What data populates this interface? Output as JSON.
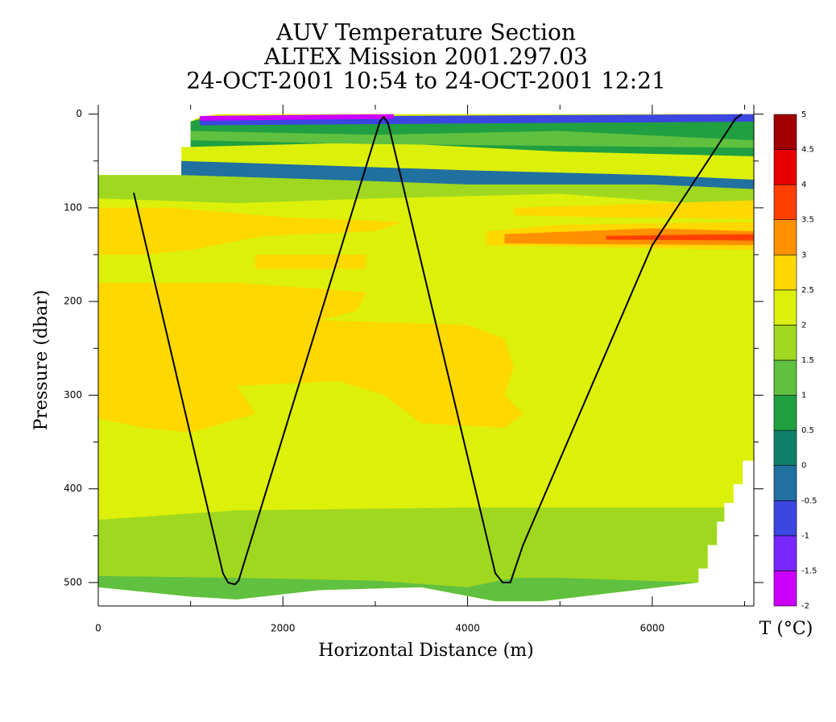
{
  "chart_data": {
    "type": "contour",
    "title": "AUV Temperature Section",
    "subtitle": "ALTEX Mission 2001.297.03",
    "time_range": "24-OCT-2001 10:54 to 24-OCT-2001 12:21",
    "x_label": "Horizontal Distance (m)",
    "y_label": "Pressure (dbar)",
    "colorbar_label": "T (°C)",
    "xlim": [
      0,
      7100
    ],
    "ylim": [
      525,
      -10
    ],
    "xticks": [
      0,
      2000,
      4000,
      6000
    ],
    "xminorticks": [
      1000,
      3000,
      5000,
      7000
    ],
    "yticks": [
      0,
      100,
      200,
      300,
      400,
      500
    ],
    "yminorticks": [
      50,
      150,
      250,
      350,
      450
    ],
    "levels": [
      -2,
      -1.5,
      -1,
      -0.5,
      0,
      0.5,
      1,
      1.5,
      2,
      2.5,
      3,
      3.5,
      4,
      4.5,
      5
    ],
    "level_colors": [
      "#cc00ff",
      "#7828ff",
      "#3c46e0",
      "#2070a0",
      "#10806a",
      "#20a040",
      "#60c040",
      "#a0d820",
      "#dcf00a",
      "#ffd800",
      "#ff9000",
      "#ff4000",
      "#e80000",
      "#a00000"
    ],
    "regions": [
      {
        "level": 2,
        "x": [
          0,
          900,
          900,
          1000,
          1000,
          1100,
          1300,
          7100,
          7100,
          6980,
          6980,
          6880,
          6880,
          6780,
          6780,
          6700,
          6700,
          6600,
          6600,
          6500,
          6500,
          4800,
          4300,
          3500,
          2400,
          1800,
          1500,
          1000,
          0
        ],
        "y": [
          65,
          65,
          35,
          35,
          8,
          3,
          0,
          0,
          370,
          370,
          395,
          395,
          415,
          415,
          435,
          435,
          460,
          460,
          485,
          485,
          500,
          520,
          520,
          505,
          508,
          510,
          518,
          515,
          505
        ]
      },
      {
        "level": 1.5,
        "x": [
          0,
          1500,
          4000,
          6780,
          6780,
          6700,
          6700,
          6600,
          6600,
          6500,
          6500,
          4800,
          4300,
          3500,
          2400,
          1500,
          1000,
          0
        ],
        "y": [
          433,
          423,
          420,
          420,
          435,
          435,
          460,
          460,
          485,
          485,
          500,
          520,
          520,
          505,
          508,
          518,
          515,
          505
        ]
      },
      {
        "level": 1,
        "x": [
          0,
          1500,
          3000,
          4000,
          4500,
          5000,
          6500,
          4800,
          4300,
          3500,
          2400,
          1500,
          1000,
          0
        ],
        "y": [
          493,
          495,
          498,
          505,
          495,
          495,
          500,
          520,
          520,
          505,
          508,
          518,
          515,
          505
        ]
      },
      {
        "level": 1.5,
        "x": [
          0,
          900,
          900,
          3000,
          5000,
          7100,
          7100,
          5000,
          3000,
          1500,
          0
        ],
        "y": [
          65,
          65,
          50,
          70,
          75,
          70,
          100,
          85,
          90,
          95,
          90
        ]
      },
      {
        "level": 2.5,
        "x": [
          0,
          800,
          2000,
          3300,
          3000,
          1800,
          1000,
          500,
          0
        ],
        "y": [
          100,
          100,
          110,
          115,
          125,
          130,
          145,
          150,
          150
        ]
      },
      {
        "level": 2.5,
        "x": [
          1700,
          2900,
          2900,
          1700
        ],
        "y": [
          150,
          150,
          165,
          165
        ]
      },
      {
        "level": 2.5,
        "x": [
          0,
          1500,
          2900,
          2800,
          2400,
          4000,
          4400,
          4500,
          4400,
          4600,
          4400,
          3500,
          3100,
          2600,
          1500,
          1700,
          1000,
          500,
          0
        ],
        "y": [
          180,
          180,
          190,
          210,
          220,
          225,
          240,
          270,
          300,
          320,
          335,
          330,
          300,
          285,
          290,
          320,
          340,
          335,
          325
        ]
      },
      {
        "level": 2.5,
        "x": [
          4500,
          7100,
          7100,
          5500,
          4500
        ],
        "y": [
          100,
          92,
          112,
          110,
          108
        ]
      },
      {
        "level": 2.5,
        "x": [
          4200,
          5000,
          7100,
          7100,
          4200
        ],
        "y": [
          125,
          118,
          115,
          145,
          140
        ]
      },
      {
        "level": 3,
        "x": [
          4400,
          6000,
          7100,
          7100,
          4400
        ],
        "y": [
          128,
          122,
          125,
          140,
          138
        ]
      },
      {
        "level": 3.5,
        "x": [
          5500,
          7100,
          7100,
          5500
        ],
        "y": [
          130,
          128,
          135,
          134
        ]
      },
      {
        "level": 0.5,
        "x": [
          1000,
          1100,
          7100,
          7100,
          5000,
          3000,
          1000
        ],
        "y": [
          8,
          5,
          5,
          45,
          40,
          30,
          35
        ]
      },
      {
        "level": 1,
        "x": [
          1000,
          3000,
          5000,
          7100,
          7100,
          3000,
          1000
        ],
        "y": [
          18,
          22,
          18,
          28,
          36,
          32,
          28
        ]
      },
      {
        "level": -0.5,
        "x": [
          900,
          2500,
          4000,
          6000,
          7100,
          7100,
          6000,
          4000,
          2500,
          900
        ],
        "y": [
          50,
          55,
          60,
          65,
          70,
          80,
          75,
          75,
          70,
          65
        ]
      },
      {
        "level": -1,
        "x": [
          1100,
          7100,
          7100,
          4000,
          1100
        ],
        "y": [
          3,
          0,
          8,
          10,
          12
        ]
      },
      {
        "level": -2,
        "x": [
          1100,
          3200,
          3200,
          1100
        ],
        "y": [
          2,
          0,
          5,
          7
        ]
      }
    ],
    "track": {
      "color": "#000000",
      "x": [
        384,
        1350,
        1406,
        1480,
        1520,
        2700,
        3050,
        3092,
        3140,
        4300,
        4380,
        4463,
        4600,
        6000,
        6900,
        6970
      ],
      "y": [
        84,
        490,
        500,
        502,
        498,
        120,
        8,
        3,
        10,
        490,
        500,
        500,
        460,
        140,
        5,
        0
      ]
    }
  }
}
